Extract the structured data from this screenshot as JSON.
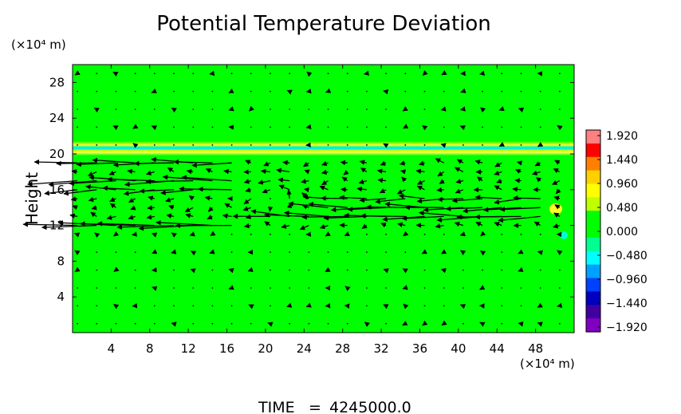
{
  "chart_data": {
    "type": "heatmap",
    "title": "Potential Temperature Deviation",
    "ylabel": "Height",
    "xlabel": "",
    "x_unit": "(×10⁴ m)",
    "y_unit": "(×10⁴ m)",
    "xlim": [
      0,
      52
    ],
    "ylim": [
      0,
      30
    ],
    "x_ticks": [
      4,
      8,
      12,
      16,
      20,
      24,
      28,
      32,
      36,
      40,
      44,
      48
    ],
    "y_ticks": [
      4,
      8,
      12,
      16,
      20,
      24,
      28
    ],
    "background_value": 0.0,
    "colorbar": {
      "ticks": [
        "1.920",
        "1.440",
        "0.960",
        "0.480",
        "0.000",
        "−0.480",
        "−0.960",
        "−1.440",
        "−1.920"
      ],
      "min": -1.92,
      "max": 1.92,
      "colors_top_to_bottom": [
        "#ff8080",
        "#ff0000",
        "#ff8000",
        "#ffd000",
        "#ffff00",
        "#c0ff00",
        "#00ff00",
        "#00ff00",
        "#00ff90",
        "#00ffff",
        "#00a0ff",
        "#0040ff",
        "#0000c0",
        "#4000a0",
        "#8000c0"
      ]
    },
    "features": [
      {
        "kind": "stratified_band",
        "y_center": 20.3,
        "x_range": [
          0,
          52
        ],
        "value_range": [
          -0.4,
          0.6
        ]
      },
      {
        "kind": "warm_patch",
        "x": 48.5,
        "y": 13.5,
        "value": 0.6
      },
      {
        "kind": "cool_patch",
        "x": 49.5,
        "y": 10.8,
        "value": -0.4
      }
    ],
    "vector_field": {
      "x_grid": [
        0.5,
        2.5,
        4.5,
        6.5,
        8.5,
        10.5,
        12.5,
        14.5,
        16.5,
        18.5,
        20.5,
        22.5,
        24.5,
        26.5,
        28.5,
        30.5,
        32.5,
        34.5,
        36.5,
        38.5,
        40.5,
        42.5,
        44.5,
        46.5,
        48.5,
        50.5
      ],
      "y_grid": [
        1,
        3,
        5,
        7,
        9,
        11,
        12,
        13,
        14,
        15,
        16,
        17,
        18,
        19,
        21,
        23,
        25,
        27,
        29
      ],
      "dominant_direction": "westward",
      "strong_layers": [
        {
          "y": 19.0,
          "u": -2.4,
          "x_range": [
            0,
            18
          ]
        },
        {
          "y": 17.0,
          "u": -2.8,
          "x_range": [
            0,
            18
          ]
        },
        {
          "y": 16.2,
          "u": -2.2,
          "x_range": [
            0,
            18
          ]
        },
        {
          "y": 12.0,
          "u": -3.5,
          "x_range": [
            0,
            18
          ]
        },
        {
          "y": 13.0,
          "u": -2.6,
          "x_range": [
            20,
            50
          ]
        },
        {
          "y": 14.0,
          "u": -2.2,
          "x_range": [
            26,
            50
          ]
        },
        {
          "y": 15.2,
          "u": -1.8,
          "x_range": [
            26,
            50
          ]
        }
      ]
    }
  },
  "footer": {
    "time_label": "TIME",
    "time_sep": "=",
    "time_value": "4245000.0"
  }
}
